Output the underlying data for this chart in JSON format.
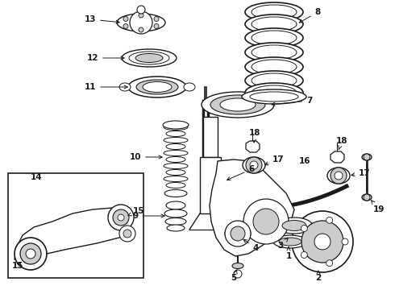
{
  "figsize": [
    4.9,
    3.6
  ],
  "dpi": 100,
  "bg": "#ffffff",
  "lc": "#1a1a1a",
  "gray": "#888888",
  "lgray": "#cccccc",
  "xlim": [
    0,
    490
  ],
  "ylim": [
    0,
    360
  ]
}
